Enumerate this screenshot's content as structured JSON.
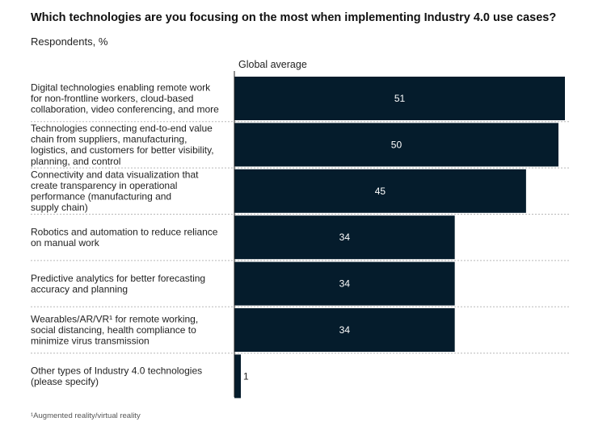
{
  "chart_data": {
    "type": "bar",
    "orientation": "horizontal",
    "title": "Which technologies are you focusing on the most when implementing Industry 4.0 use cases?",
    "subtitle": "Respondents, %",
    "series": [
      {
        "name": "Global average",
        "values": [
          51,
          50,
          45,
          34,
          34,
          34,
          1
        ]
      }
    ],
    "categories": [
      [
        "Digital technologies enabling remote work",
        "for non-frontline workers, cloud-based",
        "collaboration, video conferencing, and more"
      ],
      [
        "Technologies connecting end-to-end value",
        "chain from suppliers, manufacturing,",
        "logistics, and customers for better visibility,",
        "planning, and control"
      ],
      [
        "Connectivity and data visualization that",
        "create transparency in operational",
        "performance (manufacturing and",
        "supply chain)"
      ],
      [
        "Robotics and automation to reduce reliance",
        "on manual work"
      ],
      [
        "Predictive analytics for better forecasting",
        "accuracy and planning"
      ],
      [
        "Wearables/AR/VR¹ for remote working,",
        "social distancing, health compliance to",
        "minimize virus transmission"
      ],
      [
        "Other types of Industry 4.0 technologies",
        "(please specify)"
      ]
    ],
    "xlim": [
      0,
      51
    ],
    "grid": false,
    "bar_color": "#051c2c",
    "footnote": "¹Augmented reality/virtual reality"
  }
}
